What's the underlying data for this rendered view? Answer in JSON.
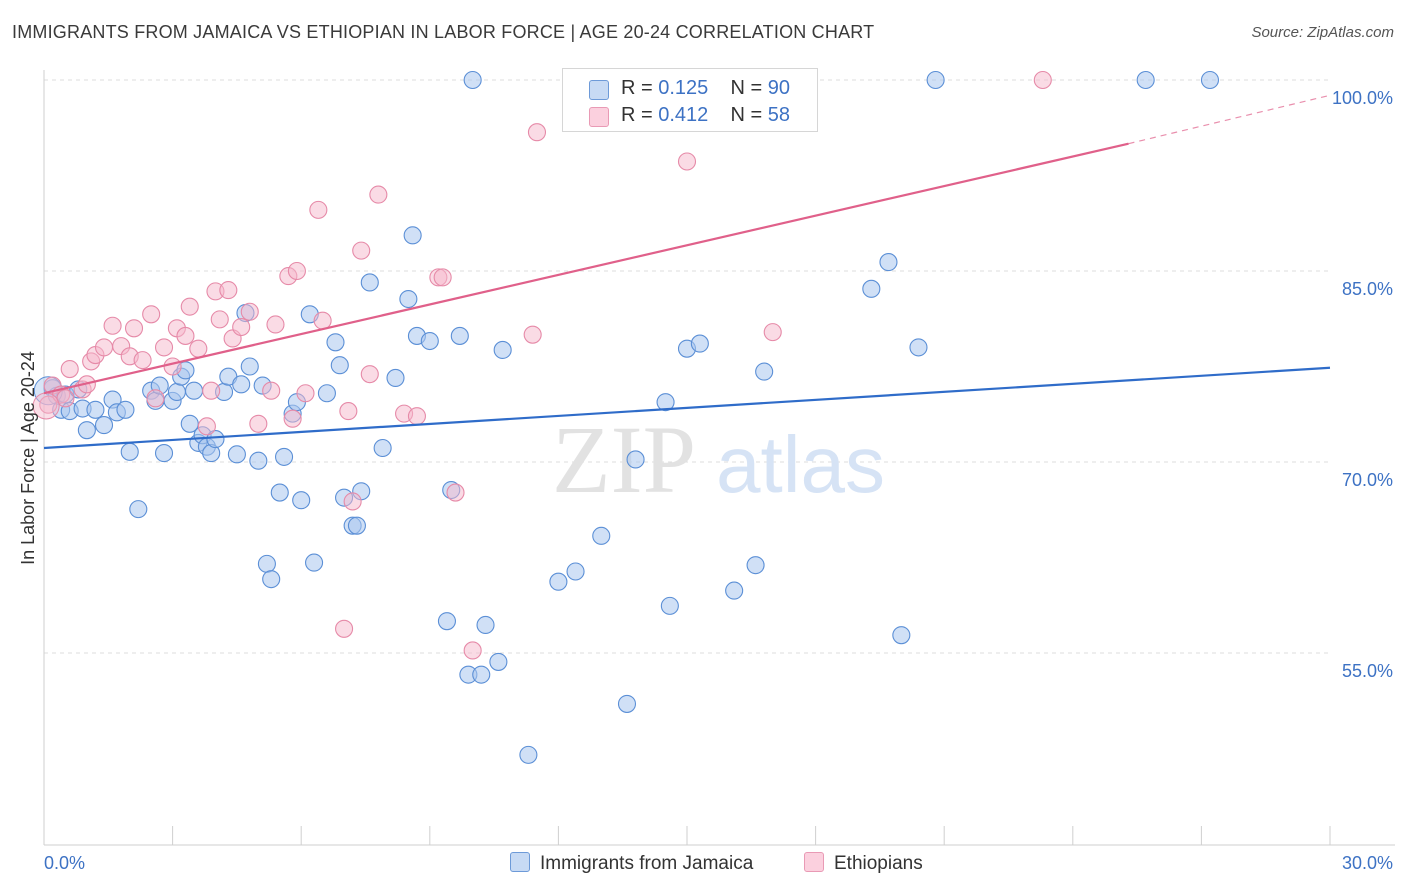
{
  "title": "IMMIGRANTS FROM JAMAICA VS ETHIOPIAN IN LABOR FORCE | AGE 20-24 CORRELATION CHART",
  "source": "Source: ZipAtlas.com",
  "watermark": {
    "zip": "ZIP",
    "atlas": "atlas"
  },
  "colors": {
    "blue_fill": "#a9c6ee",
    "blue_stroke": "#5b8fd6",
    "blue_line": "#2f6cc9",
    "pink_fill": "#f6b8cb",
    "pink_stroke": "#e68aa8",
    "pink_line": "#e0608a",
    "axis_label_blue": "#3d72c4",
    "grid": "#dedede"
  },
  "legend": {
    "rows": [
      {
        "r_label": "R = ",
        "r_value": "0.125",
        "n_label": "N = ",
        "n_value": "90"
      },
      {
        "r_label": "R = ",
        "r_value": "0.412",
        "n_label": "N = ",
        "n_value": "58"
      }
    ]
  },
  "bottom_legend": [
    "Immigrants from Jamaica",
    "Ethiopians"
  ],
  "chart_data": {
    "type": "scatter",
    "title": "IMMIGRANTS FROM JAMAICA VS ETHIOPIAN IN LABOR FORCE | AGE 20-24 CORRELATION CHART",
    "xlabel": "",
    "ylabel": "In Labor Force | Age 20-24",
    "xlim": [
      0,
      30
    ],
    "ylim": [
      43.5,
      102
    ],
    "x_tick_labels": [
      "0.0%",
      "30.0%"
    ],
    "y_ticks": [
      55,
      70,
      85,
      100
    ],
    "y_tick_labels": [
      "55.0%",
      "70.0%",
      "85.0%",
      "100.0%"
    ],
    "grid": true,
    "legend_position": "top-center",
    "series": [
      {
        "name": "Immigrants from Jamaica",
        "R": 0.125,
        "N": 90,
        "trend": {
          "x": [
            0,
            30
          ],
          "y": [
            71.1,
            77.4
          ]
        },
        "points": [
          [
            0.2,
            75.8
          ],
          [
            0.3,
            75.2
          ],
          [
            0.4,
            74.1
          ],
          [
            0.5,
            75.3
          ],
          [
            0.6,
            74.0
          ],
          [
            0.8,
            75.7
          ],
          [
            0.9,
            74.2
          ],
          [
            1.0,
            72.5
          ],
          [
            1.2,
            74.1
          ],
          [
            1.4,
            72.9
          ],
          [
            1.6,
            74.9
          ],
          [
            1.7,
            73.9
          ],
          [
            1.9,
            74.1
          ],
          [
            2.0,
            70.8
          ],
          [
            2.2,
            66.3
          ],
          [
            2.5,
            75.6
          ],
          [
            2.6,
            74.8
          ],
          [
            2.7,
            76.0
          ],
          [
            2.8,
            70.7
          ],
          [
            3.0,
            74.8
          ],
          [
            3.1,
            75.5
          ],
          [
            3.2,
            76.7
          ],
          [
            3.3,
            77.2
          ],
          [
            3.4,
            73.0
          ],
          [
            3.5,
            75.6
          ],
          [
            3.6,
            71.5
          ],
          [
            3.7,
            72.1
          ],
          [
            3.8,
            71.2
          ],
          [
            3.9,
            70.7
          ],
          [
            4.0,
            71.8
          ],
          [
            4.2,
            75.5
          ],
          [
            4.3,
            76.7
          ],
          [
            4.5,
            70.6
          ],
          [
            4.6,
            76.1
          ],
          [
            4.7,
            81.7
          ],
          [
            4.8,
            77.5
          ],
          [
            5.0,
            70.1
          ],
          [
            5.1,
            76.0
          ],
          [
            5.2,
            62.0
          ],
          [
            5.3,
            60.8
          ],
          [
            5.5,
            67.6
          ],
          [
            5.6,
            70.4
          ],
          [
            5.8,
            73.8
          ],
          [
            5.9,
            74.7
          ],
          [
            6.0,
            67.0
          ],
          [
            6.2,
            81.6
          ],
          [
            6.3,
            62.1
          ],
          [
            6.6,
            75.4
          ],
          [
            6.8,
            79.4
          ],
          [
            6.9,
            77.6
          ],
          [
            7.0,
            67.2
          ],
          [
            7.2,
            65.0
          ],
          [
            7.3,
            65.0
          ],
          [
            7.4,
            67.7
          ],
          [
            7.6,
            84.1
          ],
          [
            7.9,
            71.1
          ],
          [
            8.2,
            76.6
          ],
          [
            8.5,
            82.8
          ],
          [
            8.6,
            87.8
          ],
          [
            8.7,
            79.9
          ],
          [
            9.0,
            79.5
          ],
          [
            9.4,
            57.5
          ],
          [
            9.5,
            67.8
          ],
          [
            9.7,
            79.9
          ],
          [
            9.9,
            53.3
          ],
          [
            10.0,
            100.0
          ],
          [
            10.2,
            53.3
          ],
          [
            10.3,
            57.2
          ],
          [
            10.6,
            54.3
          ],
          [
            10.7,
            78.8
          ],
          [
            11.3,
            47.0
          ],
          [
            12.0,
            60.6
          ],
          [
            12.4,
            61.4
          ],
          [
            13.0,
            64.2
          ],
          [
            13.6,
            51.0
          ],
          [
            13.8,
            70.2
          ],
          [
            14.5,
            74.7
          ],
          [
            14.6,
            58.7
          ],
          [
            15.0,
            78.9
          ],
          [
            15.3,
            79.3
          ],
          [
            16.1,
            59.9
          ],
          [
            16.6,
            61.9
          ],
          [
            16.8,
            77.1
          ],
          [
            19.3,
            83.6
          ],
          [
            19.7,
            85.7
          ],
          [
            20.0,
            56.4
          ],
          [
            20.4,
            79.0
          ],
          [
            20.8,
            100.0
          ],
          [
            25.7,
            100.0
          ],
          [
            27.2,
            100.0
          ]
        ]
      },
      {
        "name": "Ethiopians",
        "R": 0.412,
        "N": 58,
        "trend": {
          "x": [
            0,
            25.3
          ],
          "y": [
            75.4,
            95.0
          ]
        },
        "trend_dashed": {
          "x": [
            25.3,
            30
          ],
          "y": [
            95.0,
            98.8
          ]
        },
        "points": [
          [
            0.1,
            74.5
          ],
          [
            0.2,
            76.0
          ],
          [
            0.4,
            75.3
          ],
          [
            0.5,
            75.0
          ],
          [
            0.6,
            77.3
          ],
          [
            0.9,
            75.7
          ],
          [
            1.0,
            76.1
          ],
          [
            1.1,
            77.9
          ],
          [
            1.2,
            78.4
          ],
          [
            1.4,
            79.0
          ],
          [
            1.6,
            80.7
          ],
          [
            1.8,
            79.1
          ],
          [
            2.0,
            78.3
          ],
          [
            2.1,
            80.5
          ],
          [
            2.3,
            78.0
          ],
          [
            2.5,
            81.6
          ],
          [
            2.6,
            75.0
          ],
          [
            2.8,
            79.0
          ],
          [
            3.0,
            77.5
          ],
          [
            3.1,
            80.5
          ],
          [
            3.3,
            79.9
          ],
          [
            3.4,
            82.2
          ],
          [
            3.6,
            78.9
          ],
          [
            3.8,
            72.8
          ],
          [
            3.9,
            75.6
          ],
          [
            4.0,
            83.4
          ],
          [
            4.1,
            81.2
          ],
          [
            4.3,
            83.5
          ],
          [
            4.4,
            79.7
          ],
          [
            4.6,
            80.6
          ],
          [
            4.8,
            81.8
          ],
          [
            5.0,
            73.0
          ],
          [
            5.3,
            75.6
          ],
          [
            5.4,
            80.8
          ],
          [
            5.7,
            84.6
          ],
          [
            5.8,
            73.4
          ],
          [
            5.9,
            85.0
          ],
          [
            6.1,
            75.4
          ],
          [
            6.4,
            89.8
          ],
          [
            6.5,
            81.1
          ],
          [
            7.0,
            56.9
          ],
          [
            7.1,
            74.0
          ],
          [
            7.2,
            66.9
          ],
          [
            7.4,
            86.6
          ],
          [
            7.6,
            76.9
          ],
          [
            7.8,
            91.0
          ],
          [
            8.4,
            73.8
          ],
          [
            8.7,
            73.6
          ],
          [
            9.2,
            84.5
          ],
          [
            9.3,
            84.5
          ],
          [
            9.6,
            67.6
          ],
          [
            10.0,
            55.2
          ],
          [
            11.4,
            80.0
          ],
          [
            11.5,
            95.9
          ],
          [
            14.5,
            100.0
          ],
          [
            15.0,
            93.6
          ],
          [
            17.0,
            80.2
          ],
          [
            23.3,
            100.0
          ]
        ]
      }
    ]
  }
}
